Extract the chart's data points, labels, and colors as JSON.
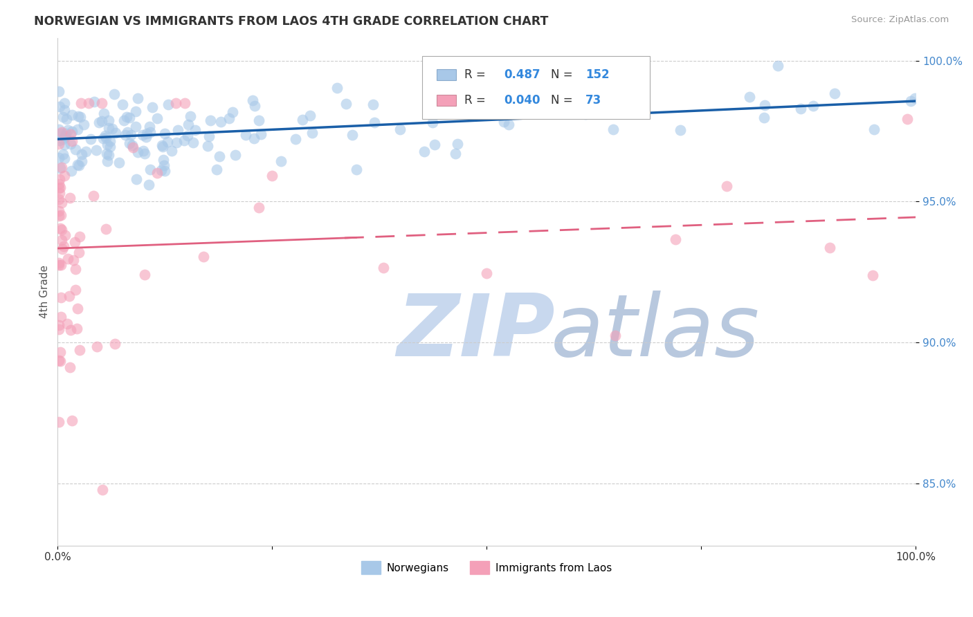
{
  "title": "NORWEGIAN VS IMMIGRANTS FROM LAOS 4TH GRADE CORRELATION CHART",
  "source": "Source: ZipAtlas.com",
  "ylabel": "4th Grade",
  "xlim": [
    0.0,
    1.0
  ],
  "ylim": [
    0.828,
    1.008
  ],
  "y_ticks": [
    0.85,
    0.9,
    0.95,
    1.0
  ],
  "y_tick_labels": [
    "85.0%",
    "90.0%",
    "95.0%",
    "100.0%"
  ],
  "norwegian_color": "#a8c8e8",
  "laos_color": "#f4a0b8",
  "norwegian_R": 0.487,
  "norwegian_N": 152,
  "laos_R": 0.04,
  "laos_N": 73,
  "trend_norwegian_color": "#1a5fa8",
  "trend_laos_color": "#e06080",
  "background_color": "#ffffff",
  "watermark_zip_color": "#c8d8ee",
  "watermark_atlas_color": "#b8c8de",
  "nor_trend_y0": 0.972,
  "nor_trend_y1": 0.998,
  "laos_trend_y0": 0.936,
  "laos_trend_y1": 0.95
}
